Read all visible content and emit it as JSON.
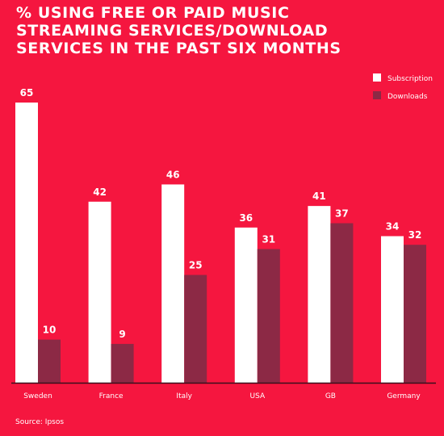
{
  "chart_data": {
    "type": "bar",
    "title_lines": [
      "% USING FREE OR PAID MUSIC",
      "STREAMING SERVICES/DOWNLOAD",
      "SERVICES IN THE PAST SIX MONTHS"
    ],
    "categories": [
      "Sweden",
      "France",
      "Italy",
      "USA",
      "GB",
      "Germany"
    ],
    "series": [
      {
        "name": "Subscription",
        "values": [
          65,
          42,
          46,
          36,
          41,
          34
        ],
        "color": "#FFFFFF"
      },
      {
        "name": "Downloads",
        "values": [
          10,
          9,
          25,
          31,
          37,
          32
        ],
        "color": "#8C2945"
      }
    ],
    "ylim": [
      0,
      65
    ],
    "grid": false,
    "legend_position": "top-right",
    "source": "Source: Ipsos",
    "colors": {
      "background": "#F5163F",
      "text": "#FFFFFF",
      "axis": "#3A0F1C"
    }
  }
}
